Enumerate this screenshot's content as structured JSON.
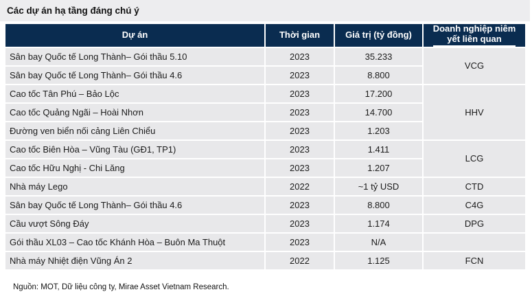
{
  "title": "Các dự án hạ tầng đáng chú ý",
  "source": "Nguồn: MOT, Dữ liệu công ty, Mirae Asset Vietnam Research.",
  "colors": {
    "header_bg": "#0a2c50",
    "row_bg": "#e8e8ea",
    "title_strip_bg": "#ededef",
    "separator": "#ffffff"
  },
  "table": {
    "headers": {
      "project": "Dự án",
      "time": "Thời gian",
      "value": "Giá trị (tỷ đồng)",
      "company_line1": "Doanh nghiệp niêm",
      "company_line2": "yết liên quan"
    },
    "rows": [
      {
        "project": "Sân bay Quốc tế Long Thành– Gói thầu 5.10",
        "year": "2023",
        "value": "35.233"
      },
      {
        "project": "Sân bay Quốc tế Long Thành– Gói thầu 4.6",
        "year": "2023",
        "value": "8.800"
      },
      {
        "project": "Cao tốc Tân Phú – Bảo Lộc",
        "year": "2023",
        "value": "17.200"
      },
      {
        "project": "Cao tốc Quảng Ngãi – Hoài Nhơn",
        "year": "2023",
        "value": "14.700"
      },
      {
        "project": "Đường ven biển nối cảng Liên Chiểu",
        "year": "2023",
        "value": "1.203"
      },
      {
        "project": "Cao tốc Biên Hòa – Vũng Tàu (GĐ1, TP1)",
        "year": "2023",
        "value": "1.411"
      },
      {
        "project": "Cao tốc Hữu Nghị - Chi Lăng",
        "year": "2023",
        "value": "1.207"
      },
      {
        "project": "Nhà máy Lego",
        "year": "2022",
        "value": "~1 tỷ USD"
      },
      {
        "project": "Sân bay Quốc tế Long Thành– Gói thầu 4.6",
        "year": "2023",
        "value": "8.800"
      },
      {
        "project": "Cầu vượt Sông Đáy",
        "year": "2023",
        "value": "1.174"
      },
      {
        "project": "Gói thầu XL03 – Cao tốc Khánh Hòa – Buôn Ma Thuột",
        "year": "2023",
        "value": "N/A"
      },
      {
        "project": "Nhà máy Nhiệt điện Vũng Án 2",
        "year": "2022",
        "value": "1.125"
      }
    ],
    "company_groups": [
      {
        "ticker": "VCG",
        "rowspan": "2"
      },
      {
        "ticker": "HHV",
        "rowspan": "3"
      },
      {
        "ticker": "LCG",
        "rowspan": "2"
      },
      {
        "ticker": "CTD",
        "rowspan": "1"
      },
      {
        "ticker": "C4G",
        "rowspan": "1"
      },
      {
        "ticker": "DPG",
        "rowspan": "1"
      },
      {
        "ticker": "",
        "rowspan": "1"
      },
      {
        "ticker": "FCN",
        "rowspan": "1"
      }
    ]
  }
}
